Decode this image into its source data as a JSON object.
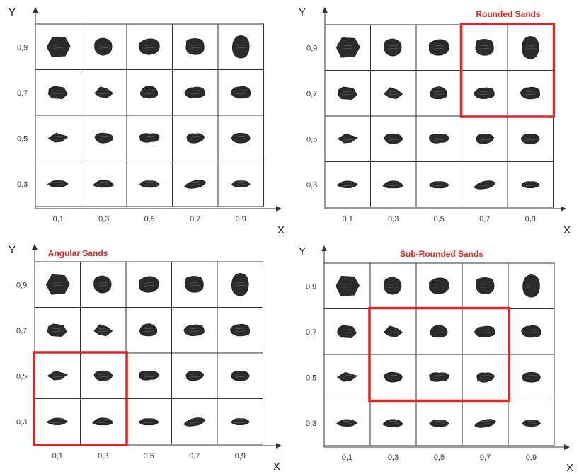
{
  "panels": [
    {
      "title": "",
      "x_axis_label": "X",
      "y_axis_label": "Y",
      "x_ticks": [
        "0,1",
        "0,3",
        "0,5",
        "0,7",
        "0,9"
      ],
      "y_ticks": [
        "0,9",
        "0,7",
        "0,5",
        "0,3"
      ],
      "highlight": null
    },
    {
      "title": "Rounded Sands",
      "x_axis_label": "X",
      "y_axis_label": "Y",
      "x_ticks": [
        "0,1",
        "0,3",
        "0,5",
        "0,7",
        "0,9"
      ],
      "y_ticks": [
        "0,9",
        "0,7",
        "0,5",
        "0,3"
      ],
      "highlight": {
        "x_from": "0,7",
        "x_to": "0,9",
        "y_from": "0,7",
        "y_to": "0,9"
      }
    },
    {
      "title": "Angular Sands",
      "x_axis_label": "X",
      "y_axis_label": "Y",
      "x_ticks": [
        "0,1",
        "0,3",
        "0,5",
        "0,7",
        "0,9"
      ],
      "y_ticks": [
        "0,9",
        "0,7",
        "0,5",
        "0,3"
      ],
      "highlight": {
        "x_from": "0,1",
        "x_to": "0,3",
        "y_from": "0,3",
        "y_to": "0,5"
      }
    },
    {
      "title": "Sub-Rounded Sands",
      "x_axis_label": "X",
      "y_axis_label": "Y",
      "x_ticks": [
        "0,1",
        "0,3",
        "0,5",
        "0,7",
        "0,9"
      ],
      "y_ticks": [
        "0,9",
        "0,7",
        "0,5",
        "0,3"
      ],
      "highlight": {
        "x_from": "0,3",
        "x_to": "0,7",
        "y_from": "0,5",
        "y_to": "0,7"
      }
    }
  ],
  "colors": {
    "particle": "#2b2b2b",
    "grid": "#333333",
    "highlight": "#d42a2a",
    "title": "#d42a2a"
  }
}
